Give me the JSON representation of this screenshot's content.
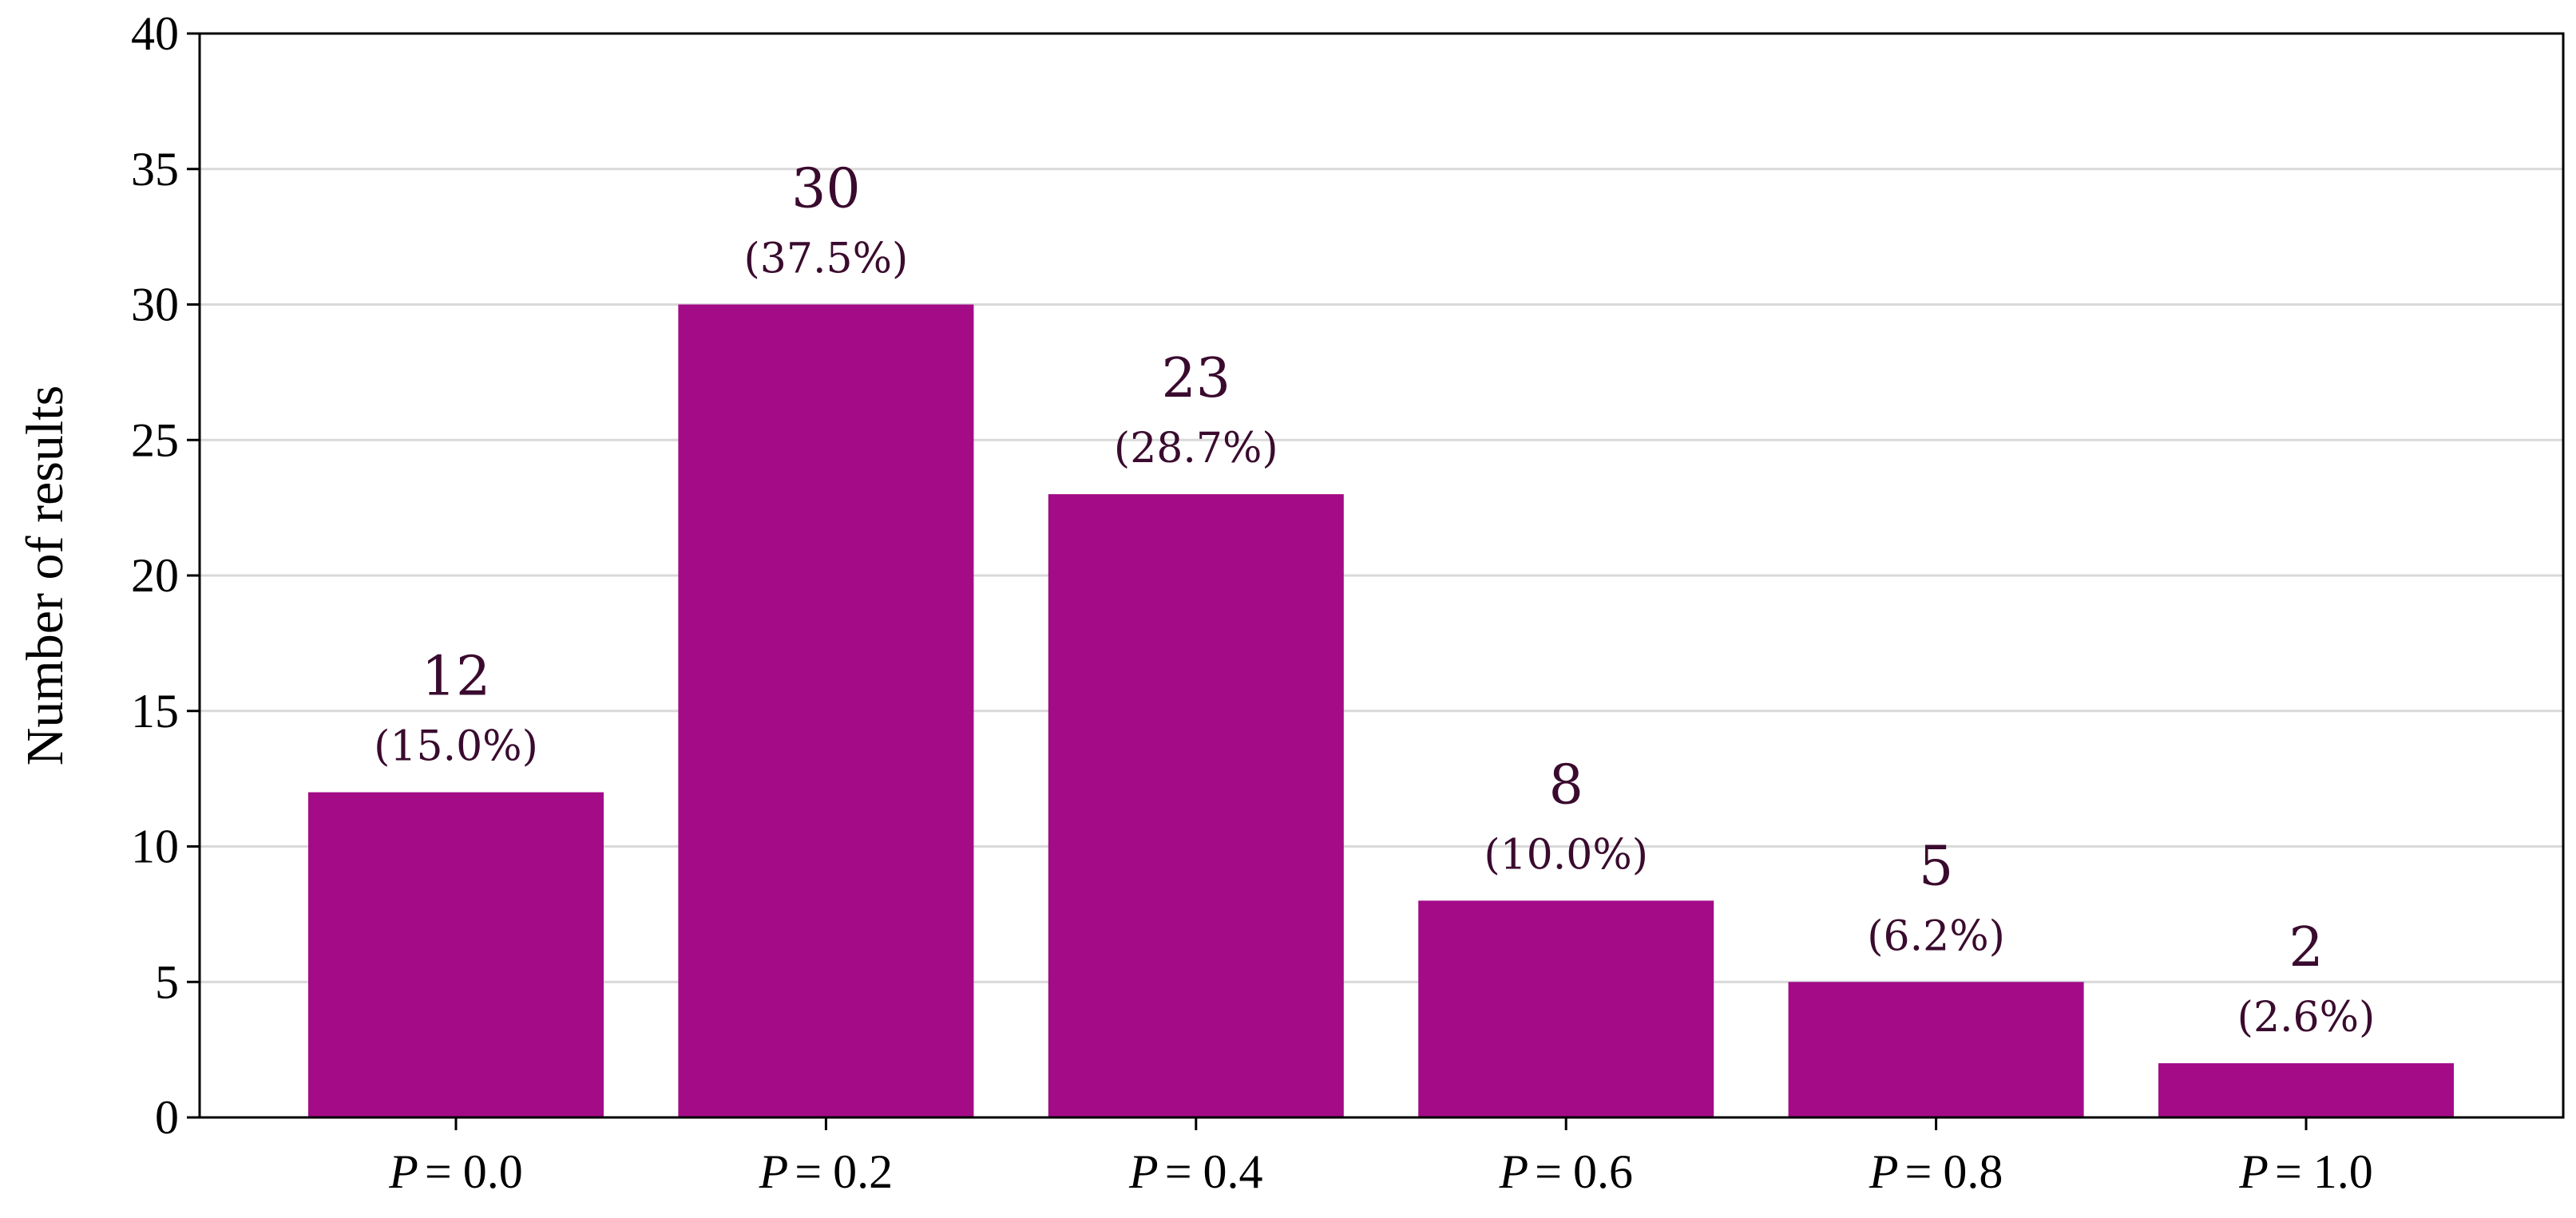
{
  "chart_data": {
    "type": "bar",
    "categories": [
      "P = 0.0",
      "P = 0.2",
      "P = 0.4",
      "P = 0.6",
      "P = 0.8",
      "P = 1.0"
    ],
    "category_parts": [
      {
        "var": "P",
        "eq": "=",
        "val": "0.0"
      },
      {
        "var": "P",
        "eq": "=",
        "val": "0.2"
      },
      {
        "var": "P",
        "eq": "=",
        "val": "0.4"
      },
      {
        "var": "P",
        "eq": "=",
        "val": "0.6"
      },
      {
        "var": "P",
        "eq": "=",
        "val": "0.8"
      },
      {
        "var": "P",
        "eq": "=",
        "val": "1.0"
      }
    ],
    "values": [
      12,
      30,
      23,
      8,
      5,
      2
    ],
    "value_labels": [
      "12",
      "30",
      "23",
      "8",
      "5",
      "2"
    ],
    "percent_labels": [
      "(15.0%)",
      "(37.5%)",
      "(28.7%)",
      "(10.0%)",
      "(6.2%)",
      "(2.6%)"
    ],
    "title": "",
    "xlabel": "",
    "ylabel": "Number of results",
    "ylim": [
      0,
      40
    ],
    "yticks": [
      0,
      5,
      10,
      15,
      20,
      25,
      30,
      35,
      40
    ],
    "grid": "horizontal",
    "bar_color": "#a30b87",
    "label_color": "#3a0b2e"
  }
}
